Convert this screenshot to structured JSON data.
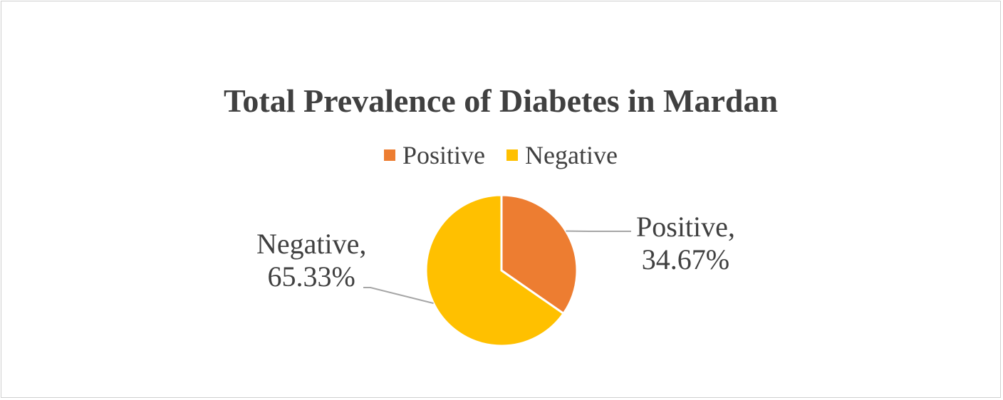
{
  "chart_data": {
    "type": "pie",
    "title": "Total Prevalence of Diabetes in Mardan",
    "legend_position": "top",
    "slices": [
      {
        "name": "Positive",
        "value": 34.67,
        "label": "34.67%",
        "color": "#ED7D31"
      },
      {
        "name": "Negative",
        "value": 65.33,
        "label": "65.33%",
        "color": "#FFC000"
      }
    ]
  }
}
